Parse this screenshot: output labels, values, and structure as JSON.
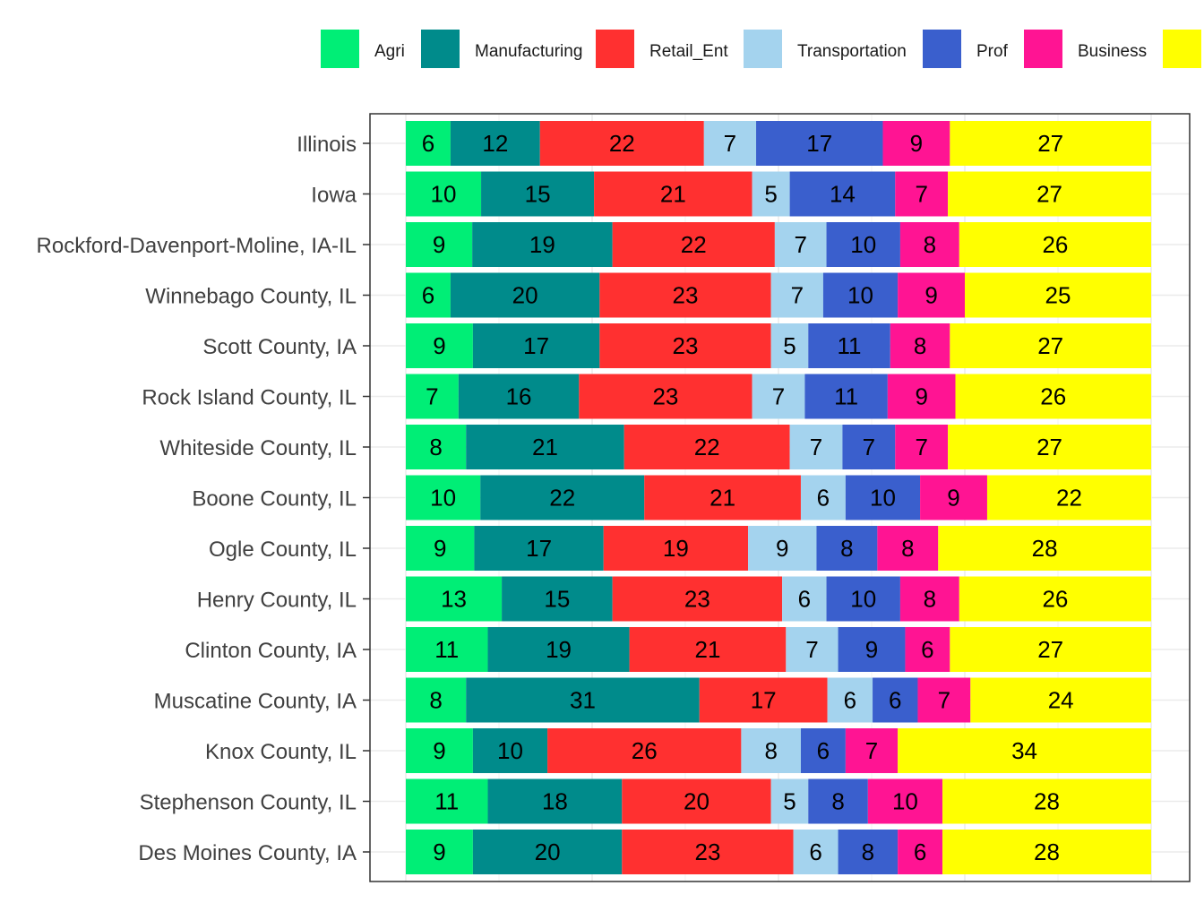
{
  "chart_data": {
    "type": "bar",
    "orientation": "horizontal",
    "stacked": true,
    "normalized": true,
    "title": "",
    "xlabel": "",
    "ylabel": "",
    "grid": true,
    "legend_position": "top",
    "categories": [
      "Illinois",
      "Iowa",
      "Rockford-Davenport-Moline, IA-IL",
      "Winnebago County, IL",
      "Scott County, IA",
      "Rock Island County, IL",
      "Whiteside County, IL",
      "Boone County, IL",
      "Ogle County, IL",
      "Henry County, IL",
      "Clinton County, IA",
      "Muscatine County, IA",
      "Knox County, IL",
      "Stephenson County, IL",
      "Des Moines County, IA"
    ],
    "series": [
      {
        "name": "Agri",
        "color": "#00EE76",
        "values": [
          6,
          10,
          9,
          6,
          9,
          7,
          8,
          10,
          9,
          13,
          11,
          8,
          9,
          11,
          9
        ]
      },
      {
        "name": "Manufacturing",
        "color": "#008B8B",
        "values": [
          12,
          15,
          19,
          20,
          17,
          16,
          21,
          22,
          17,
          15,
          19,
          31,
          10,
          18,
          20
        ]
      },
      {
        "name": "Retail_Ent",
        "color": "#FF3030",
        "values": [
          22,
          21,
          22,
          23,
          23,
          23,
          22,
          21,
          19,
          23,
          21,
          17,
          26,
          20,
          23
        ]
      },
      {
        "name": "Transportation",
        "color": "#A4D3EE",
        "values": [
          7,
          5,
          7,
          7,
          5,
          7,
          7,
          6,
          9,
          6,
          7,
          6,
          8,
          5,
          6
        ]
      },
      {
        "name": "Prof",
        "color": "#3A5FCD",
        "values": [
          17,
          14,
          10,
          10,
          11,
          11,
          7,
          10,
          8,
          10,
          9,
          6,
          6,
          8,
          8
        ]
      },
      {
        "name": "Business",
        "color": "#FF1493",
        "values": [
          9,
          7,
          8,
          9,
          8,
          9,
          7,
          9,
          8,
          8,
          6,
          7,
          7,
          10,
          6
        ]
      },
      {
        "name": "",
        "color": "#FFFF00",
        "values": [
          27,
          27,
          26,
          25,
          27,
          26,
          27,
          22,
          28,
          26,
          27,
          24,
          34,
          28,
          28
        ]
      }
    ]
  }
}
